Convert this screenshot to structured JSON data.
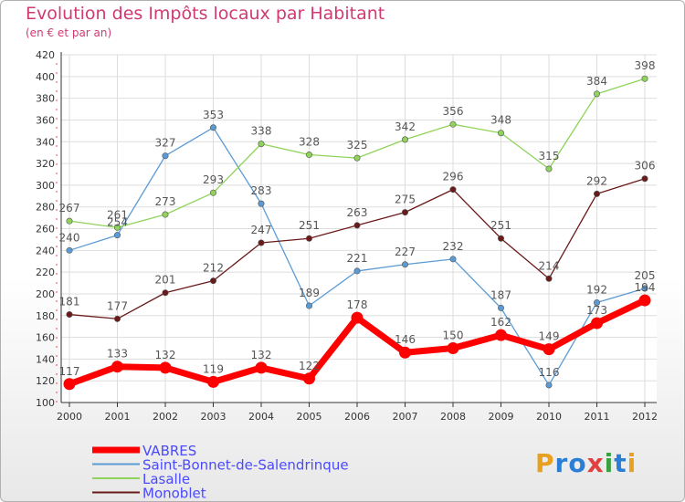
{
  "chart_data": {
    "type": "line",
    "title": "Evolution des Impôts locaux par Habitant",
    "subtitle": "(en € et par an)",
    "x": [
      "2000",
      "2001",
      "2002",
      "2003",
      "2004",
      "2005",
      "2006",
      "2007",
      "2008",
      "2009",
      "2010",
      "2011",
      "2012"
    ],
    "ylim": [
      100,
      420
    ],
    "yticks": [
      100,
      120,
      140,
      160,
      180,
      200,
      220,
      240,
      260,
      280,
      300,
      320,
      340,
      360,
      380,
      400,
      420
    ],
    "grid": true,
    "legend_position": "bottom-left",
    "series": [
      {
        "name": "VABRES",
        "color": "#ff0000",
        "values": [
          117,
          133,
          132,
          119,
          132,
          122,
          178,
          146,
          150,
          162,
          149,
          173,
          194
        ]
      },
      {
        "name": "Saint-Bonnet-de-Salendrinque",
        "color": "#5b9bd5",
        "values": [
          240,
          254,
          327,
          353,
          283,
          189,
          221,
          227,
          232,
          187,
          116,
          192,
          205
        ]
      },
      {
        "name": "Lasalle",
        "color": "#8fd35a",
        "values": [
          267,
          261,
          273,
          293,
          338,
          328,
          325,
          342,
          356,
          348,
          315,
          384,
          398
        ]
      },
      {
        "name": "Monoblet",
        "color": "#6b1a1a",
        "values": [
          181,
          177,
          201,
          212,
          247,
          251,
          263,
          275,
          296,
          251,
          214,
          292,
          306
        ]
      }
    ]
  },
  "legend_text_color": "#4a4aff",
  "logo": {
    "text": "Proxiti",
    "letters": [
      "P",
      "r",
      "o",
      "x",
      "i",
      "t",
      "i"
    ],
    "colors": [
      "#e8a020",
      "#2a7fd4",
      "#2a7fd4",
      "#e04040",
      "#3aa040",
      "#2a7fd4",
      "#e8a020"
    ]
  }
}
